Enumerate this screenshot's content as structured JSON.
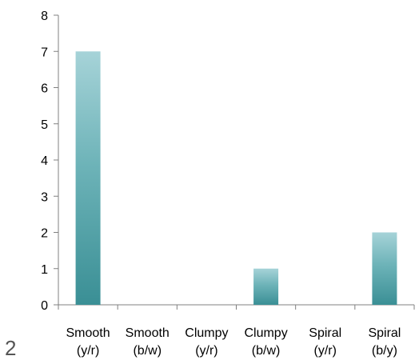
{
  "chart_data": {
    "type": "bar",
    "categories": [
      [
        "Smooth",
        "(y/r)"
      ],
      [
        "Smooth",
        "(b/w)"
      ],
      [
        "Clumpy",
        "(y/r)"
      ],
      [
        "Clumpy",
        "(b/w)"
      ],
      [
        "Spiral",
        "(y/r)"
      ],
      [
        "Spiral",
        "(b/y)"
      ]
    ],
    "values": [
      7,
      0,
      0,
      1,
      0,
      2
    ],
    "ylim": [
      0,
      8
    ],
    "yticks": [
      0,
      1,
      2,
      3,
      4,
      5,
      6,
      7,
      8
    ],
    "title": "",
    "xlabel": "",
    "ylabel": "",
    "grid": false,
    "legend": "none",
    "bar_color_top": "#a6d3d8",
    "bar_color_bottom": "#3a8f95"
  },
  "page_number": "2"
}
